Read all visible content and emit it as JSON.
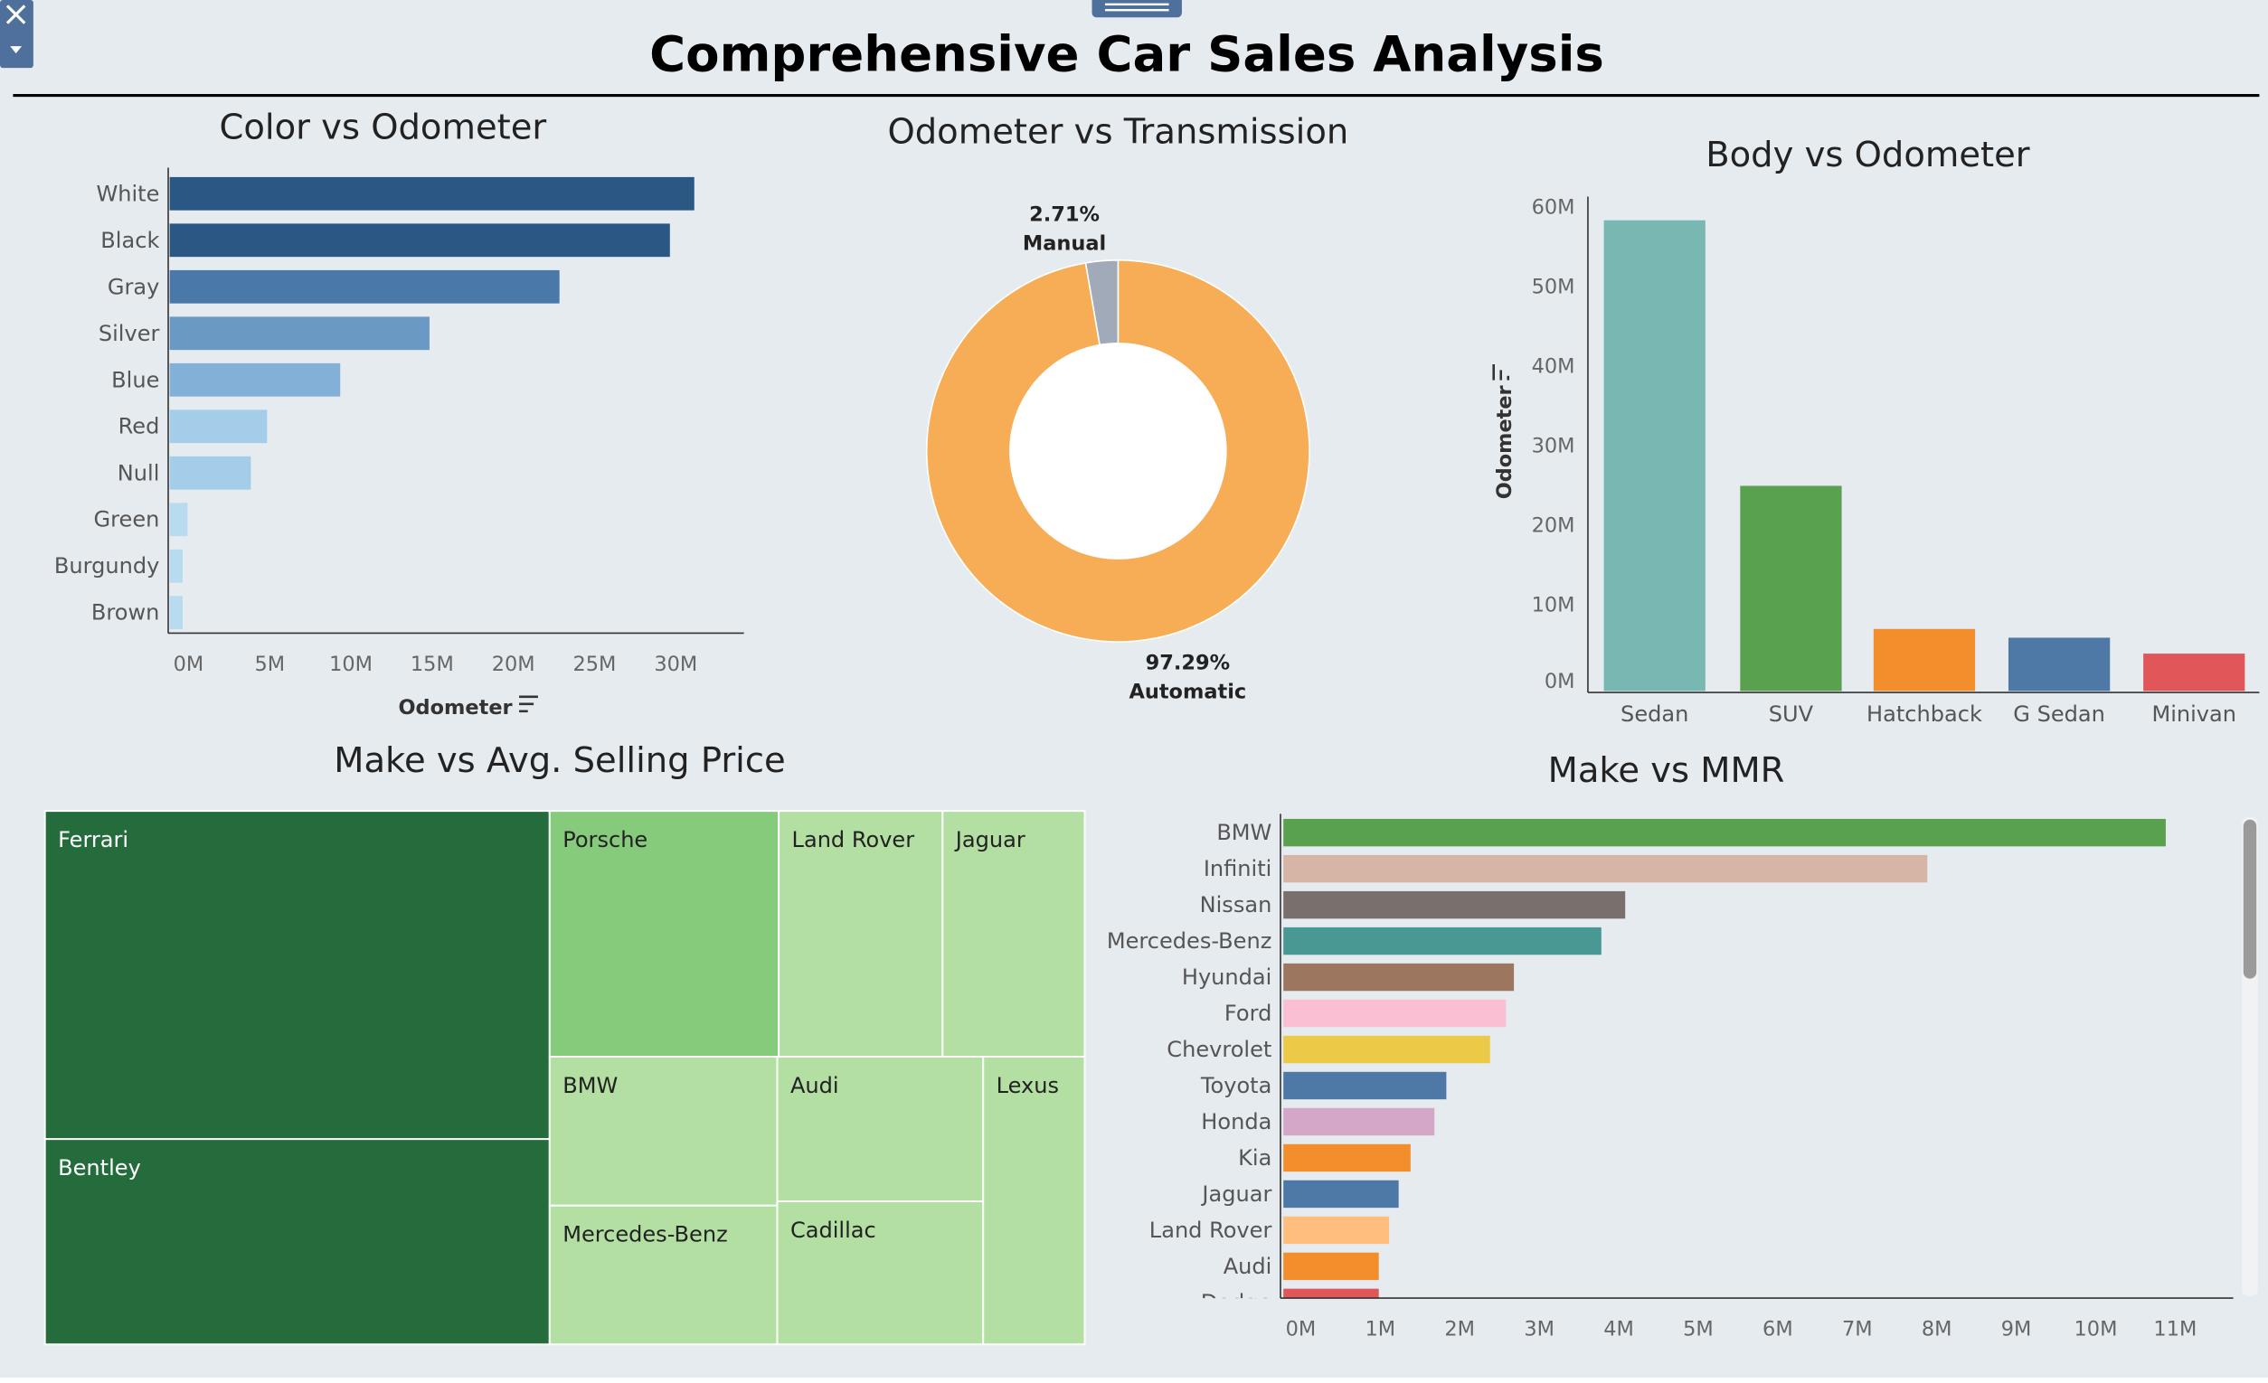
{
  "dashboard": {
    "title": "Comprehensive Car Sales Analysis"
  },
  "chart_data": [
    {
      "id": "color_odometer",
      "type": "bar",
      "orientation": "horizontal",
      "title": "Color vs Odometer",
      "xlabel": "Odometer",
      "ylabel": "",
      "categories": [
        "White",
        "Black",
        "Gray",
        "Silver",
        "Blue",
        "Red",
        "Null",
        "Green",
        "Burgundy",
        "Brown"
      ],
      "values": [
        32300000,
        30800000,
        24000000,
        16000000,
        10500000,
        6000000,
        5000000,
        1100000,
        800000,
        800000
      ],
      "colors": [
        "#2a5783",
        "#2a5783",
        "#4a78a8",
        "#6a9ac4",
        "#82b0d6",
        "#a3cde9",
        "#a3cde9",
        "#b8dbf0",
        "#b8dbf0",
        "#b8dbf0"
      ],
      "xticks": [
        "0M",
        "5M",
        "10M",
        "15M",
        "20M",
        "25M",
        "30M"
      ],
      "xlim": [
        0,
        34000000
      ]
    },
    {
      "id": "odometer_transmission",
      "type": "pie",
      "title": "Odometer vs Transmission",
      "donut": true,
      "slices": [
        {
          "label": "Automatic",
          "percent_label": "97.29%",
          "value": 97.29,
          "color": "#f6ad55"
        },
        {
          "label": "Manual",
          "percent_label": "2.71%",
          "value": 2.71,
          "color": "#a0aab8"
        }
      ]
    },
    {
      "id": "body_odometer",
      "type": "bar",
      "orientation": "vertical",
      "title": "Body vs Odometer",
      "ylabel": "Odometer",
      "xlabel": "",
      "categories": [
        "Sedan",
        "SUV",
        "Hatchback",
        "G Sedan",
        "Minivan"
      ],
      "values": [
        59200000,
        25800000,
        7800000,
        6700000,
        4700000
      ],
      "colors": [
        "#79b8b2",
        "#59a14f",
        "#f28e2b",
        "#4e79a7",
        "#e15759"
      ],
      "yticks": [
        "0M",
        "10M",
        "20M",
        "30M",
        "40M",
        "50M",
        "60M"
      ],
      "ylim": [
        0,
        60000000
      ]
    },
    {
      "id": "make_avg_price",
      "type": "heatmap",
      "subtype": "treemap",
      "title": "Make vs Avg. Selling Price",
      "items": [
        {
          "label": "Ferrari",
          "value": 128000,
          "color": "#256c3d"
        },
        {
          "label": "Bentley",
          "value": 76000,
          "color": "#256c3d"
        },
        {
          "label": "Porsche",
          "value": 52000,
          "color": "#86cb7b"
        },
        {
          "label": "Land Rover",
          "value": 38000,
          "color": "#b3dfa3"
        },
        {
          "label": "Jaguar",
          "value": 38000,
          "color": "#b3dfa3"
        },
        {
          "label": "BMW",
          "value": 31000,
          "color": "#b3dfa3"
        },
        {
          "label": "Mercedes-Benz",
          "value": 29000,
          "color": "#b3dfa3"
        },
        {
          "label": "Audi",
          "value": 27000,
          "color": "#b3dfa3"
        },
        {
          "label": "Cadillac",
          "value": 26000,
          "color": "#b3dfa3"
        },
        {
          "label": "Lexus",
          "value": 25000,
          "color": "#b3dfa3"
        }
      ]
    },
    {
      "id": "make_mmr",
      "type": "bar",
      "orientation": "horizontal",
      "title": "Make vs MMR",
      "xlabel": "",
      "ylabel": "",
      "categories": [
        "BMW",
        "Infiniti",
        "Nissan",
        "Mercedes-Benz",
        "Hyundai",
        "Ford",
        "Chevrolet",
        "Toyota",
        "Honda",
        "Kia",
        "Jaguar",
        "Land Rover",
        "Audi",
        "Dodge"
      ],
      "values": [
        11100000,
        8100000,
        4300000,
        4000000,
        2900000,
        2800000,
        2600000,
        2050000,
        1900000,
        1600000,
        1450000,
        1330000,
        1200000,
        1200000
      ],
      "colors": [
        "#59a14f",
        "#d7b5a6",
        "#79706e",
        "#499894",
        "#9d7660",
        "#fabfd2",
        "#edc948",
        "#4e79a7",
        "#d4a6c8",
        "#f28e2b",
        "#4e79a7",
        "#ffbe7d",
        "#f28e2b",
        "#e15759"
      ],
      "xticks": [
        "0M",
        "1M",
        "2M",
        "3M",
        "4M",
        "5M",
        "6M",
        "7M",
        "8M",
        "9M",
        "10M",
        "11M"
      ],
      "xlim": [
        0,
        11800000
      ]
    }
  ]
}
